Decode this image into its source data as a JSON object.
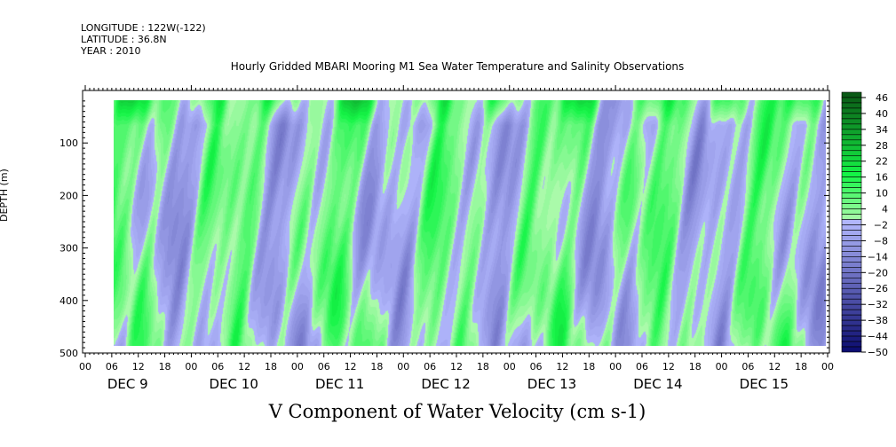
{
  "header": {
    "longitude": "LONGITUDE : 122W(-122)",
    "latitude": "LATITUDE : 36.8N",
    "year": "YEAR : 2010"
  },
  "chart_data": {
    "type": "heatmap",
    "title": "Hourly Gridded MBARI Mooring M1 Sea Water Temperature and Salinity Observations",
    "xlabel": "V Component of Water Velocity (cm s-1)",
    "ylabel": "DEPTH (m)",
    "y_ticks": [
      100,
      200,
      300,
      400,
      500
    ],
    "ylim": [
      0,
      500
    ],
    "x_hour_ticks": [
      "00",
      "06",
      "12",
      "18"
    ],
    "days": [
      "DEC  9",
      "DEC 10",
      "DEC 11",
      "DEC 12",
      "DEC 13",
      "DEC 14",
      "DEC 15"
    ],
    "data_start_hour": 7,
    "data_depth_range": [
      20,
      485
    ],
    "colorbar": {
      "min": -50,
      "max": 48,
      "step": 2,
      "labels": [
        46,
        40,
        34,
        28,
        22,
        16,
        10,
        4,
        -2,
        -8,
        -14,
        -20,
        -26,
        -32,
        -38,
        -44,
        -50
      ]
    }
  }
}
